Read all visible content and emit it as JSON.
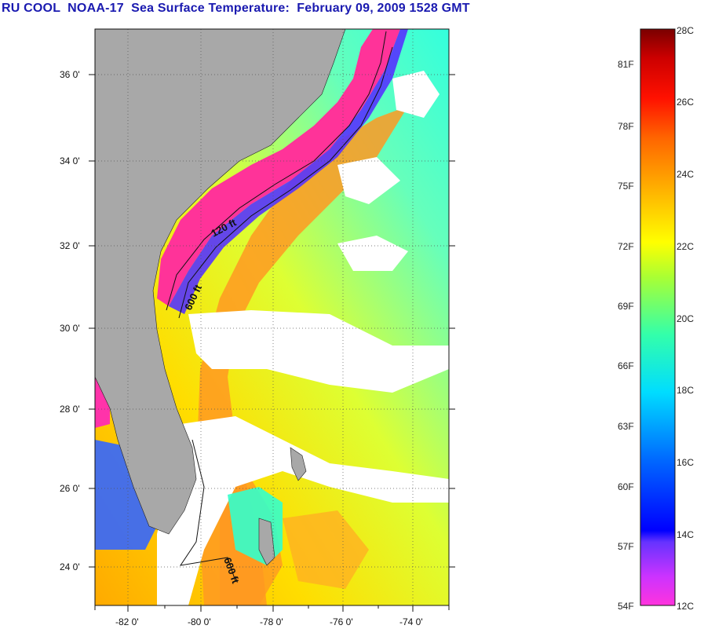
{
  "title": "RU COOL  NOAA-17  Sea Surface Temperature:  February 09, 2009 1528 GMT",
  "map": {
    "lon_ticks": [
      "-82 0'",
      "-80 0'",
      "-78 0'",
      "-76 0'",
      "-74 0'"
    ],
    "lat_ticks": [
      "36 0'",
      "34 0'",
      "32 0'",
      "30 0'",
      "28 0'",
      "26 0'",
      "24 0'"
    ],
    "contour_labels": [
      "120 ft",
      "600 ft",
      "600 ft"
    ],
    "land_color": "#a8a8a8"
  },
  "colorbar": {
    "fahrenheit_labels": [
      "81F",
      "78F",
      "75F",
      "72F",
      "69F",
      "66F",
      "63F",
      "60F",
      "57F",
      "54F"
    ],
    "celsius_labels": [
      "28C",
      "26C",
      "24C",
      "22C",
      "20C",
      "18C",
      "16C",
      "14C",
      "12C"
    ],
    "colors": [
      "#ff33cc",
      "#9933ff",
      "#0000ff",
      "#0099ff",
      "#00ffff",
      "#33ff99",
      "#ccff33",
      "#ffff00",
      "#ffcc00",
      "#ff8800",
      "#ff3300",
      "#ff0000",
      "#880000"
    ]
  }
}
